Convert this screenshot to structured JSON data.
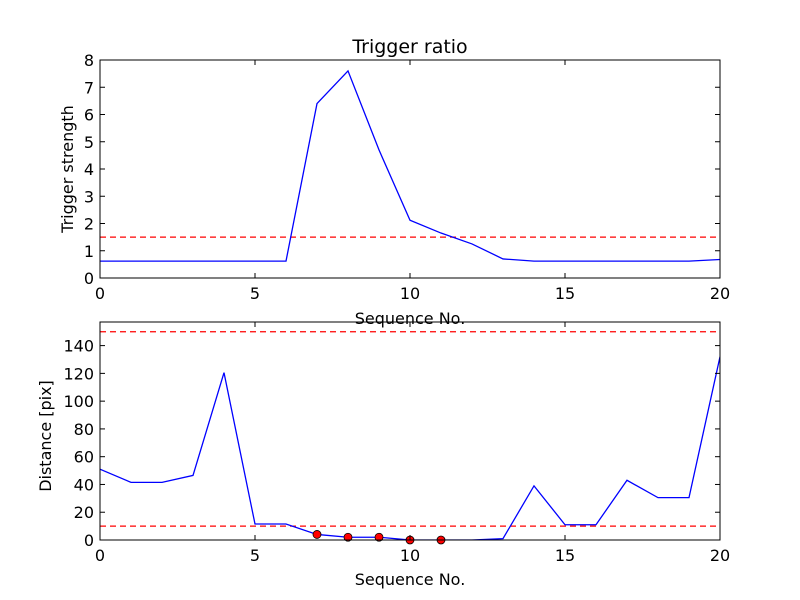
{
  "chart_data": [
    {
      "type": "line",
      "title": "Trigger ratio",
      "xlabel": "Sequence No.",
      "ylabel": "Trigger strength",
      "xlim": [
        0,
        20
      ],
      "ylim": [
        0,
        8
      ],
      "xticks": [
        "0",
        "5",
        "10",
        "15",
        "20"
      ],
      "yticks": [
        "0",
        "1",
        "2",
        "3",
        "4",
        "5",
        "6",
        "7",
        "8"
      ],
      "grid": false,
      "series": [
        {
          "color": "#0000ff",
          "style": "solid",
          "x": [
            0,
            1,
            2,
            3,
            4,
            5,
            6,
            7,
            8,
            9,
            10,
            11,
            12,
            13,
            14,
            15,
            16,
            17,
            18,
            19,
            20
          ],
          "y": [
            0.62,
            0.62,
            0.62,
            0.62,
            0.62,
            0.62,
            0.62,
            6.4,
            7.6,
            4.7,
            2.12,
            1.65,
            1.25,
            0.7,
            0.62,
            0.62,
            0.62,
            0.62,
            0.62,
            0.62,
            0.68
          ]
        }
      ],
      "hlines": [
        {
          "y": 1.5,
          "color": "#ff0000",
          "style": "dashed"
        }
      ]
    },
    {
      "type": "line",
      "title": "",
      "xlabel": "Sequence No.",
      "ylabel": "Distance [pix]",
      "xlim": [
        0,
        20
      ],
      "ylim": [
        0,
        157
      ],
      "xticks": [
        "0",
        "5",
        "10",
        "15",
        "20"
      ],
      "yticks": [
        "0",
        "20",
        "40",
        "60",
        "80",
        "100",
        "120",
        "140"
      ],
      "grid": false,
      "series": [
        {
          "color": "#0000ff",
          "style": "solid",
          "x": [
            0,
            1,
            2,
            3,
            4,
            5,
            6,
            7,
            8,
            9,
            10,
            11,
            12,
            13,
            14,
            15,
            16,
            17,
            18,
            19,
            20
          ],
          "y": [
            51,
            41.5,
            41.5,
            46.5,
            120.5,
            11.5,
            11.5,
            4,
            2,
            2,
            0,
            0,
            0,
            1,
            39,
            11,
            11,
            43,
            30.5,
            30.5,
            132
          ]
        }
      ],
      "markers": {
        "color": "#ff0000",
        "x": [
          7,
          8,
          9,
          10,
          11
        ],
        "y": [
          4,
          2,
          2,
          0,
          0
        ]
      },
      "hlines": [
        {
          "y": 150,
          "color": "#ff0000",
          "style": "dashed"
        },
        {
          "y": 10,
          "color": "#ff0000",
          "style": "dashed"
        }
      ]
    }
  ]
}
